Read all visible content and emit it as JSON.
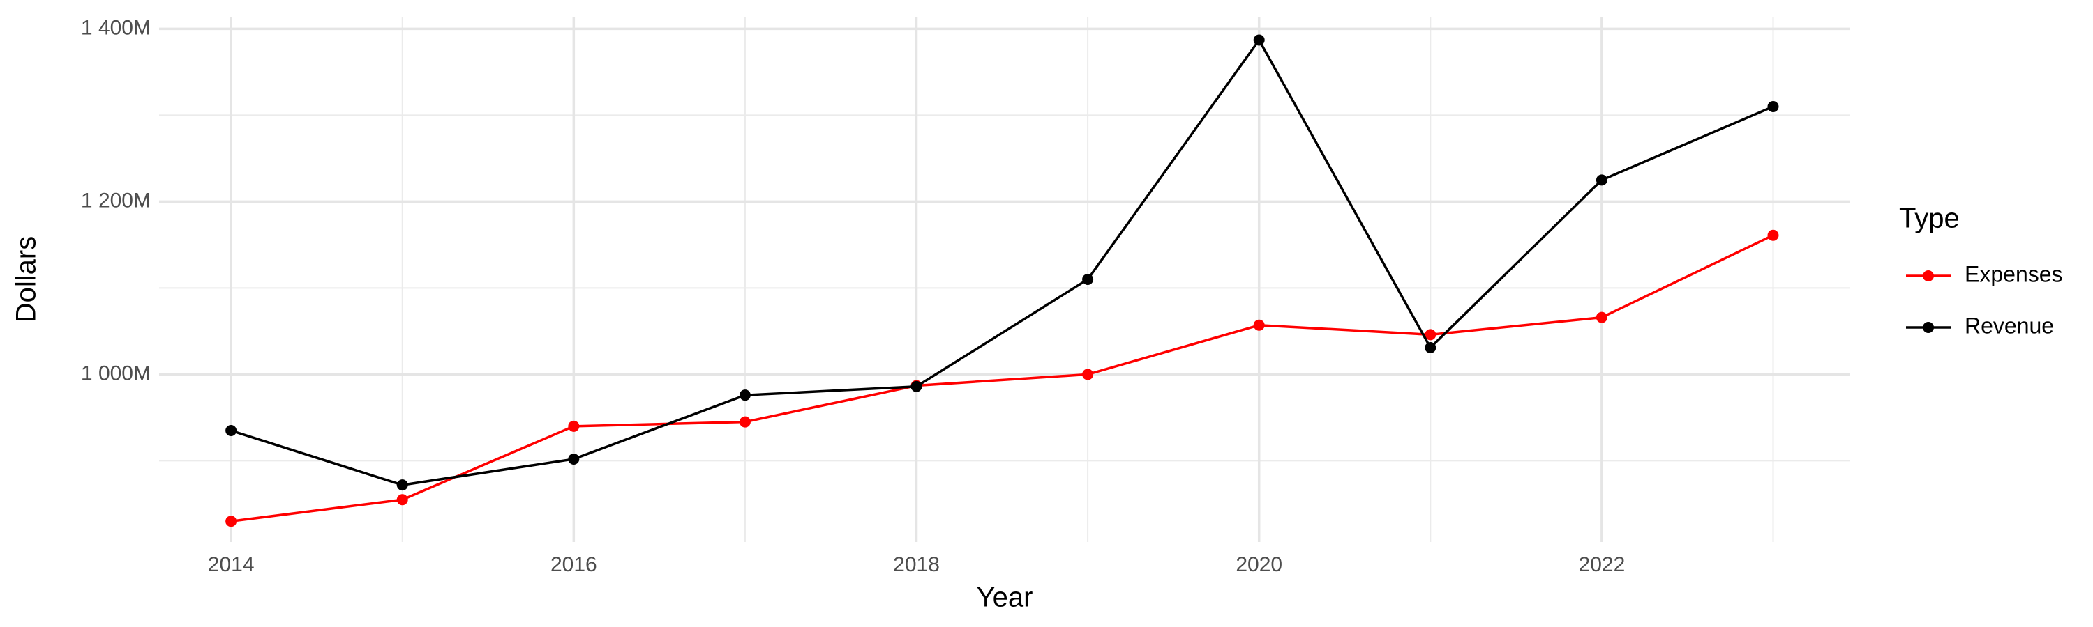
{
  "chart_data": {
    "type": "line",
    "x_label": "Year",
    "y_label": "Dollars",
    "legend_title": "Type",
    "legend_position": "right",
    "grid": true,
    "x": [
      2014,
      2015,
      2016,
      2017,
      2018,
      2019,
      2020,
      2021,
      2022,
      2023
    ],
    "series": [
      {
        "name": "Expenses",
        "color": "#ff0000",
        "values": [
          830000000,
          855000000,
          940000000,
          945000000,
          987000000,
          1000000000,
          1057000000,
          1046000000,
          1066000000,
          1161000000
        ]
      },
      {
        "name": "Revenue",
        "color": "#000000",
        "values": [
          935000000,
          872000000,
          902000000,
          976000000,
          986000000,
          1110000000,
          1387000000,
          1031000000,
          1225000000,
          1310000000
        ]
      }
    ],
    "xlim": [
      2013.58,
      2023.45
    ],
    "xticks": [
      2014,
      2016,
      2018,
      2020,
      2022
    ],
    "x_minor_ticks": [
      2015,
      2017,
      2019,
      2021,
      2023
    ],
    "ylim": [
      806000000,
      1414000000
    ],
    "yticks": [
      {
        "value": 1000000000,
        "label": "1 000M"
      },
      {
        "value": 1200000000,
        "label": "1 200M"
      },
      {
        "value": 1400000000,
        "label": "1 400M"
      }
    ],
    "y_minor_ticks": [
      900000000,
      1100000000,
      1300000000
    ]
  }
}
